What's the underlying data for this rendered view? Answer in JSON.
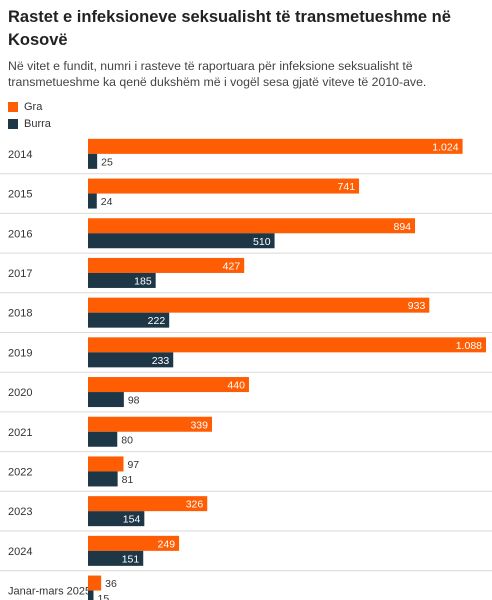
{
  "title": "Rastet e infeksioneve seksualisht të transmetueshme në Kosovë",
  "subtitle": "Në vitet e fundit, numri i rasteve të raportuara për infeksione seksualisht të transmetueshme ka qenë dukshëm më i vogël sesa gjatë viteve të 2010-ave.",
  "colors": {
    "gra": "#fe5d04",
    "burra": "#1d3747",
    "divider": "#d9d9d9"
  },
  "chart_data": {
    "type": "bar",
    "orientation": "horizontal",
    "title": "Rastet e infeksioneve seksualisht të transmetueshme në Kosovë",
    "categories": [
      "2014",
      "2015",
      "2016",
      "2017",
      "2018",
      "2019",
      "2020",
      "2021",
      "2022",
      "2023",
      "2024",
      "Janar-mars 2025"
    ],
    "series": [
      {
        "name": "Gra",
        "values": [
          1024,
          741,
          894,
          427,
          933,
          1088,
          440,
          339,
          97,
          326,
          249,
          36
        ],
        "labels": [
          "1.024",
          "741",
          "894",
          "427",
          "933",
          "1.088",
          "440",
          "339",
          "97",
          "326",
          "249",
          "36"
        ]
      },
      {
        "name": "Burra",
        "values": [
          25,
          24,
          510,
          185,
          222,
          233,
          98,
          80,
          81,
          154,
          151,
          15
        ],
        "labels": [
          "25",
          "24",
          "510",
          "185",
          "222",
          "233",
          "98",
          "80",
          "81",
          "154",
          "151",
          "15"
        ]
      }
    ],
    "xlim": [
      0,
      1088
    ],
    "legend": "top-left",
    "grid": false
  }
}
